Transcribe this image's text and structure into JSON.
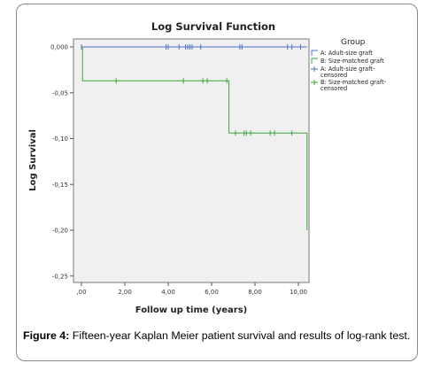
{
  "chart_data": {
    "type": "line",
    "title": "Log Survival Function",
    "xlabel": "Follow up time (years)",
    "ylabel": "Log Survival",
    "xlim": [
      -0.2,
      10.5
    ],
    "ylim": [
      -0.26,
      0.005
    ],
    "x_ticks": [
      0,
      2,
      4,
      6,
      8,
      10
    ],
    "x_tick_labels": [
      ",00",
      "2,00",
      "4,00",
      "6,00",
      "8,00",
      "10,00"
    ],
    "y_ticks": [
      0,
      -0.05,
      -0.1,
      -0.15,
      -0.2,
      -0.25
    ],
    "y_tick_labels": [
      "0,000",
      "-0,05",
      "-0,10",
      "-0,15",
      "-0,20",
      "-0,25"
    ],
    "grid": false,
    "legend_title": "Group",
    "legend_position": "right",
    "legend": [
      {
        "label": "A: Adult-size graft",
        "kind": "line",
        "color": "#4a72c4"
      },
      {
        "label": "B: Size-matched graft",
        "kind": "line",
        "color": "#3aa63a"
      },
      {
        "label": "A: Adult-size graft-censored",
        "label_lines": [
          "A: Adult-size graft-",
          "censored"
        ],
        "kind": "censor",
        "color": "#4a72c4"
      },
      {
        "label": "B: Size-matched graft-censored",
        "label_lines": [
          "B: Size-matched graft-",
          "censored"
        ],
        "kind": "censor",
        "color": "#3aa63a"
      }
    ],
    "series": [
      {
        "name": "A: Adult-size graft",
        "color": "#4a72c4",
        "steps": [
          [
            0,
            0
          ],
          [
            10.4,
            0
          ]
        ],
        "censored": [
          [
            0,
            0
          ],
          [
            3.9,
            0
          ],
          [
            4.0,
            0
          ],
          [
            4.5,
            0
          ],
          [
            4.8,
            0
          ],
          [
            4.9,
            0
          ],
          [
            5.0,
            0
          ],
          [
            5.1,
            0
          ],
          [
            5.5,
            0
          ],
          [
            7.3,
            0
          ],
          [
            7.4,
            0
          ],
          [
            9.5,
            0
          ],
          [
            9.7,
            0
          ],
          [
            10.1,
            0
          ]
        ]
      },
      {
        "name": "B: Size-matched graft",
        "color": "#3aa63a",
        "steps": [
          [
            0,
            0
          ],
          [
            0.05,
            0
          ],
          [
            0.05,
            -0.037
          ],
          [
            6.8,
            -0.037
          ],
          [
            6.8,
            -0.094
          ],
          [
            10.4,
            -0.094
          ],
          [
            10.4,
            -0.2
          ]
        ],
        "censored": [
          [
            1.6,
            -0.037
          ],
          [
            4.7,
            -0.037
          ],
          [
            5.6,
            -0.037
          ],
          [
            5.8,
            -0.037
          ],
          [
            6.7,
            -0.037
          ],
          [
            7.1,
            -0.094
          ],
          [
            7.5,
            -0.094
          ],
          [
            7.6,
            -0.094
          ],
          [
            7.8,
            -0.094
          ],
          [
            8.7,
            -0.094
          ],
          [
            8.9,
            -0.094
          ],
          [
            9.7,
            -0.094
          ]
        ]
      }
    ]
  },
  "caption": {
    "label": "Figure 4:",
    "text": " Fifteen-year Kaplan Meier patient survival and results of log-rank test."
  }
}
